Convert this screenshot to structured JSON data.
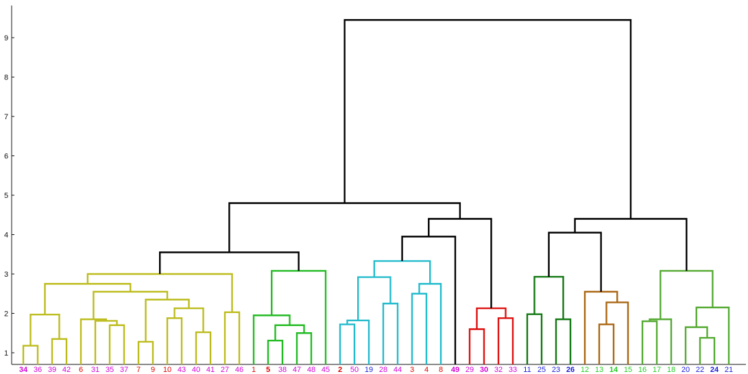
{
  "chart_data": {
    "type": "dendrogram",
    "title": "",
    "xlabel": "",
    "ylabel": "",
    "ylim": [
      0.8,
      9.6
    ],
    "yticks": [
      1,
      2,
      3,
      4,
      5,
      6,
      7,
      8,
      9
    ],
    "grid": false,
    "leaves": [
      {
        "label": "34",
        "color": "#d400d4",
        "bold": true
      },
      {
        "label": "36",
        "color": "#d400d4",
        "bold": false
      },
      {
        "label": "39",
        "color": "#d400d4",
        "bold": false
      },
      {
        "label": "42",
        "color": "#d400d4",
        "bold": false
      },
      {
        "label": "6",
        "color": "#e00000",
        "bold": false
      },
      {
        "label": "31",
        "color": "#d400d4",
        "bold": false
      },
      {
        "label": "35",
        "color": "#d400d4",
        "bold": false
      },
      {
        "label": "37",
        "color": "#d400d4",
        "bold": false
      },
      {
        "label": "7",
        "color": "#e00000",
        "bold": false
      },
      {
        "label": "9",
        "color": "#e00000",
        "bold": false
      },
      {
        "label": "10",
        "color": "#e00000",
        "bold": false
      },
      {
        "label": "43",
        "color": "#d400d4",
        "bold": false
      },
      {
        "label": "40",
        "color": "#d400d4",
        "bold": false
      },
      {
        "label": "41",
        "color": "#d400d4",
        "bold": false
      },
      {
        "label": "27",
        "color": "#d400d4",
        "bold": false
      },
      {
        "label": "46",
        "color": "#d400d4",
        "bold": false
      },
      {
        "label": "1",
        "color": "#e00000",
        "bold": false
      },
      {
        "label": "5",
        "color": "#e00000",
        "bold": true
      },
      {
        "label": "38",
        "color": "#d400d4",
        "bold": false
      },
      {
        "label": "47",
        "color": "#d400d4",
        "bold": false
      },
      {
        "label": "48",
        "color": "#d400d4",
        "bold": false
      },
      {
        "label": "45",
        "color": "#d400d4",
        "bold": false
      },
      {
        "label": "2",
        "color": "#e00000",
        "bold": true
      },
      {
        "label": "50",
        "color": "#d400d4",
        "bold": false
      },
      {
        "label": "19",
        "color": "#1a1ad8",
        "bold": false
      },
      {
        "label": "28",
        "color": "#d400d4",
        "bold": false
      },
      {
        "label": "44",
        "color": "#d400d4",
        "bold": false
      },
      {
        "label": "3",
        "color": "#e00000",
        "bold": false
      },
      {
        "label": "4",
        "color": "#e00000",
        "bold": false
      },
      {
        "label": "8",
        "color": "#e00000",
        "bold": false
      },
      {
        "label": "49",
        "color": "#d400d4",
        "bold": true
      },
      {
        "label": "29",
        "color": "#d400d4",
        "bold": false
      },
      {
        "label": "30",
        "color": "#d400d4",
        "bold": true
      },
      {
        "label": "32",
        "color": "#d400d4",
        "bold": false
      },
      {
        "label": "33",
        "color": "#d400d4",
        "bold": false
      },
      {
        "label": "11",
        "color": "#1a1ad8",
        "bold": false
      },
      {
        "label": "25",
        "color": "#1a1ad8",
        "bold": false
      },
      {
        "label": "23",
        "color": "#1a1ad8",
        "bold": false
      },
      {
        "label": "26",
        "color": "#1a1ad8",
        "bold": true
      },
      {
        "label": "12",
        "color": "#22cc22",
        "bold": false
      },
      {
        "label": "13",
        "color": "#22cc22",
        "bold": false
      },
      {
        "label": "14",
        "color": "#22cc22",
        "bold": true
      },
      {
        "label": "15",
        "color": "#22cc22",
        "bold": false
      },
      {
        "label": "16",
        "color": "#22cc22",
        "bold": false
      },
      {
        "label": "17",
        "color": "#22cc22",
        "bold": false
      },
      {
        "label": "18",
        "color": "#22cc22",
        "bold": false
      },
      {
        "label": "20",
        "color": "#1a1ad8",
        "bold": false
      },
      {
        "label": "22",
        "color": "#1a1ad8",
        "bold": false
      },
      {
        "label": "24",
        "color": "#1a1ad8",
        "bold": true
      },
      {
        "label": "21",
        "color": "#1a1ad8",
        "bold": false
      }
    ],
    "merges": [
      {
        "id": "a1",
        "l": 0,
        "r": 1,
        "h": 1.18,
        "color": "#bcbc1c"
      },
      {
        "id": "a2",
        "l": 2,
        "r": 3,
        "h": 1.35,
        "color": "#bcbc1c"
      },
      {
        "id": "a3",
        "l": "a1",
        "r": "a2",
        "h": 1.97,
        "color": "#bcbc1c"
      },
      {
        "id": "a4",
        "l": 6,
        "r": 7,
        "h": 1.7,
        "color": "#bcbc1c"
      },
      {
        "id": "a5",
        "l": 5,
        "r": "a4",
        "h": 1.81,
        "color": "#bcbc1c"
      },
      {
        "id": "a6",
        "l": 4,
        "r": "a5",
        "h": 1.85,
        "color": "#bcbc1c"
      },
      {
        "id": "a7",
        "l": 8,
        "r": 9,
        "h": 1.28,
        "color": "#bcbc1c"
      },
      {
        "id": "a8",
        "l": 10,
        "r": 11,
        "h": 1.88,
        "color": "#bcbc1c"
      },
      {
        "id": "a9",
        "l": 12,
        "r": 13,
        "h": 1.52,
        "color": "#bcbc1c"
      },
      {
        "id": "a10",
        "l": "a8",
        "r": "a9",
        "h": 2.13,
        "color": "#bcbc1c"
      },
      {
        "id": "a11",
        "l": "a7",
        "r": "a10",
        "h": 2.35,
        "color": "#bcbc1c"
      },
      {
        "id": "a12",
        "l": "a6",
        "r": "a11",
        "h": 2.55,
        "color": "#bcbc1c"
      },
      {
        "id": "a13",
        "l": "a3",
        "r": "a12",
        "h": 2.75,
        "color": "#bcbc1c"
      },
      {
        "id": "a14",
        "l": 14,
        "r": 15,
        "h": 2.03,
        "color": "#bcbc1c"
      },
      {
        "id": "a15",
        "l": "a13",
        "r": "a14",
        "h": 3.0,
        "color": "#bcbc1c"
      },
      {
        "id": "b1",
        "l": 17,
        "r": 18,
        "h": 1.31,
        "color": "#22bb22"
      },
      {
        "id": "b2",
        "l": 19,
        "r": 20,
        "h": 1.5,
        "color": "#22bb22"
      },
      {
        "id": "b3",
        "l": "b1",
        "r": "b2",
        "h": 1.7,
        "color": "#22bb22"
      },
      {
        "id": "b4",
        "l": 16,
        "r": "b3",
        "h": 1.95,
        "color": "#22bb22"
      },
      {
        "id": "b5",
        "l": "b4",
        "r": 21,
        "h": 3.08,
        "color": "#22bb22"
      },
      {
        "id": "c1",
        "l": 22,
        "r": 23,
        "h": 1.72,
        "color": "#22bbcc"
      },
      {
        "id": "c2",
        "l": "c1",
        "r": 24,
        "h": 1.82,
        "color": "#22bbcc"
      },
      {
        "id": "c3",
        "l": 25,
        "r": 26,
        "h": 2.25,
        "color": "#22bbcc"
      },
      {
        "id": "c4",
        "l": "c2",
        "r": "c3",
        "h": 2.92,
        "color": "#22bbcc"
      },
      {
        "id": "c5",
        "l": 27,
        "r": 28,
        "h": 2.5,
        "color": "#22bbcc"
      },
      {
        "id": "c6",
        "l": "c5",
        "r": 29,
        "h": 2.75,
        "color": "#22bbcc"
      },
      {
        "id": "c7",
        "l": "c4",
        "r": "c6",
        "h": 3.33,
        "color": "#22bbcc"
      },
      {
        "id": "d1",
        "l": 31,
        "r": 32,
        "h": 1.6,
        "color": "#dd1111"
      },
      {
        "id": "d2",
        "l": 33,
        "r": 34,
        "h": 1.88,
        "color": "#dd1111"
      },
      {
        "id": "d3",
        "l": "d1",
        "r": "d2",
        "h": 2.13,
        "color": "#dd1111"
      },
      {
        "id": "e1",
        "l": 35,
        "r": 36,
        "h": 1.98,
        "color": "#117711"
      },
      {
        "id": "e2",
        "l": 37,
        "r": 38,
        "h": 1.85,
        "color": "#117711"
      },
      {
        "id": "e3",
        "l": "e1",
        "r": "e2",
        "h": 2.93,
        "color": "#117711"
      },
      {
        "id": "f1",
        "l": 40,
        "r": 41,
        "h": 1.72,
        "color": "#aa6611"
      },
      {
        "id": "f2",
        "l": "f1",
        "r": 42,
        "h": 2.28,
        "color": "#aa6611"
      },
      {
        "id": "f3",
        "l": 39,
        "r": "f2",
        "h": 2.55,
        "color": "#aa6611"
      },
      {
        "id": "g1",
        "l": 43,
        "r": 44,
        "h": 1.8,
        "color": "#55aa33"
      },
      {
        "id": "g2",
        "l": "g1",
        "r": 45,
        "h": 1.85,
        "color": "#55aa33"
      },
      {
        "id": "g3",
        "l": 47,
        "r": 48,
        "h": 1.38,
        "color": "#55aa33"
      },
      {
        "id": "g4",
        "l": 46,
        "r": "g3",
        "h": 1.65,
        "color": "#55aa33"
      },
      {
        "id": "g5",
        "l": "g4",
        "r": 49,
        "h": 2.15,
        "color": "#55aa33"
      },
      {
        "id": "g6",
        "l": "g2",
        "r": "g5",
        "h": 3.08,
        "color": "#55aa33"
      },
      {
        "id": "k1",
        "l": "a15",
        "r": "b5",
        "h": 3.55,
        "color": "#000000"
      },
      {
        "id": "k2",
        "l": "c7",
        "r": 30,
        "h": 3.95,
        "color": "#000000"
      },
      {
        "id": "k3",
        "l": "k2",
        "r": "d3",
        "h": 4.4,
        "color": "#000000"
      },
      {
        "id": "k4",
        "l": "k1",
        "r": "k3",
        "h": 4.8,
        "color": "#000000"
      },
      {
        "id": "k5",
        "l": "e3",
        "r": "f3",
        "h": 4.05,
        "color": "#000000"
      },
      {
        "id": "k6",
        "l": "k5",
        "r": "g6",
        "h": 4.4,
        "color": "#000000"
      },
      {
        "id": "k7",
        "l": "k4",
        "r": "k6",
        "h": 9.45,
        "color": "#000000"
      }
    ],
    "colors": {
      "axis": "#111111",
      "background": "#ffffff"
    }
  }
}
